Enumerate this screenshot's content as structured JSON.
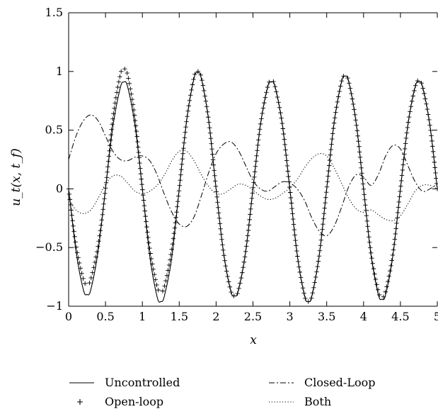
{
  "chart_data": {
    "type": "line",
    "title": "",
    "xlabel": "x",
    "ylabel": "u_t(x, t_f)",
    "xlim": [
      0,
      5
    ],
    "ylim": [
      -1,
      1.5
    ],
    "xticks": [
      0,
      0.5,
      1,
      1.5,
      2,
      2.5,
      3,
      3.5,
      4,
      4.5,
      5
    ],
    "xtick_labels": [
      "0",
      "0.5",
      "1",
      "1.5",
      "2",
      "2.5",
      "3",
      "3.5",
      "4",
      "4.5",
      "5"
    ],
    "yticks": [
      -1,
      -0.5,
      0,
      0.5,
      1,
      1.5
    ],
    "ytick_labels": [
      "−1",
      "−0.5",
      "0",
      "0.5",
      "1",
      "1.5"
    ],
    "grid": false,
    "legend_position": "bottom",
    "series": [
      {
        "name": "Uncontrolled",
        "style": "solid",
        "x": [
          0,
          0.1,
          0.2,
          0.25,
          0.3,
          0.4,
          0.5,
          0.6,
          0.7,
          0.75,
          0.8,
          0.9,
          1.0,
          1.1,
          1.2,
          1.25,
          1.3,
          1.4,
          1.5,
          1.6,
          1.7,
          1.75,
          1.8,
          1.9,
          2.0,
          2.1,
          2.2,
          2.25,
          2.3,
          2.4,
          2.5,
          2.6,
          2.7,
          2.75,
          2.8,
          2.9,
          3.0,
          3.1,
          3.2,
          3.25,
          3.3,
          3.4,
          3.5,
          3.6,
          3.7,
          3.75,
          3.8,
          3.9,
          4.0,
          4.1,
          4.2,
          4.25,
          4.3,
          4.4,
          4.5,
          4.6,
          4.7,
          4.75,
          4.8,
          4.9,
          5.0
        ],
        "y": [
          0.0,
          -0.53,
          -0.86,
          -0.9,
          -0.86,
          -0.53,
          0.0,
          0.53,
          0.86,
          0.91,
          0.87,
          0.54,
          0.0,
          -0.57,
          -0.92,
          -0.96,
          -0.91,
          -0.58,
          0.0,
          0.58,
          0.94,
          0.99,
          0.94,
          0.58,
          0.0,
          -0.54,
          -0.87,
          -0.91,
          -0.87,
          -0.54,
          0.0,
          0.54,
          0.87,
          0.91,
          0.87,
          0.54,
          0.0,
          -0.56,
          -0.91,
          -0.96,
          -0.91,
          -0.56,
          0.0,
          0.56,
          0.91,
          0.96,
          0.91,
          0.56,
          0.0,
          -0.56,
          -0.9,
          -0.94,
          -0.9,
          -0.56,
          0.0,
          0.54,
          0.87,
          0.91,
          0.87,
          0.54,
          0.0
        ]
      },
      {
        "name": "Open-loop",
        "style": "plus",
        "x": [
          0,
          0.1,
          0.2,
          0.25,
          0.3,
          0.4,
          0.5,
          0.6,
          0.7,
          0.75,
          0.8,
          0.9,
          1.0,
          1.1,
          1.2,
          1.25,
          1.3,
          1.4,
          1.5,
          1.6,
          1.7,
          1.75,
          1.8,
          1.9,
          2.0,
          2.1,
          2.2,
          2.25,
          2.3,
          2.4,
          2.5,
          2.6,
          2.7,
          2.75,
          2.8,
          2.9,
          3.0,
          3.1,
          3.2,
          3.25,
          3.3,
          3.4,
          3.5,
          3.6,
          3.7,
          3.75,
          3.8,
          3.9,
          4.0,
          4.1,
          4.2,
          4.25,
          4.3,
          4.4,
          4.5,
          4.6,
          4.7,
          4.75,
          4.8,
          4.9,
          5.0
        ],
        "y": [
          0.0,
          -0.48,
          -0.77,
          -0.81,
          -0.77,
          -0.48,
          0.0,
          0.6,
          0.97,
          1.02,
          0.97,
          0.6,
          0.0,
          -0.51,
          -0.83,
          -0.87,
          -0.83,
          -0.51,
          0.0,
          0.58,
          0.95,
          1.0,
          0.95,
          0.58,
          0.0,
          -0.54,
          -0.87,
          -0.91,
          -0.87,
          -0.54,
          0.0,
          0.54,
          0.87,
          0.92,
          0.87,
          0.54,
          0.0,
          -0.56,
          -0.91,
          -0.96,
          -0.91,
          -0.56,
          0.0,
          0.56,
          0.91,
          0.96,
          0.91,
          0.56,
          0.0,
          -0.54,
          -0.87,
          -0.92,
          -0.87,
          -0.54,
          0.0,
          0.54,
          0.87,
          0.92,
          0.87,
          0.54,
          0.0
        ]
      },
      {
        "name": "Closed-Loop",
        "style": "dashdot",
        "x": [
          0,
          0.1,
          0.2,
          0.3,
          0.4,
          0.5,
          0.6,
          0.7,
          0.8,
          0.9,
          1.0,
          1.1,
          1.2,
          1.3,
          1.4,
          1.5,
          1.6,
          1.7,
          1.8,
          1.9,
          2.0,
          2.1,
          2.2,
          2.3,
          2.4,
          2.5,
          2.6,
          2.7,
          2.8,
          2.9,
          3.0,
          3.1,
          3.2,
          3.3,
          3.4,
          3.5,
          3.6,
          3.7,
          3.8,
          3.9,
          4.0,
          4.1,
          4.2,
          4.3,
          4.4,
          4.5,
          4.6,
          4.7,
          4.8,
          4.9,
          5.0
        ],
        "y": [
          0.25,
          0.45,
          0.58,
          0.63,
          0.58,
          0.45,
          0.32,
          0.25,
          0.24,
          0.27,
          0.28,
          0.24,
          0.12,
          -0.05,
          -0.2,
          -0.3,
          -0.32,
          -0.24,
          -0.06,
          0.14,
          0.3,
          0.38,
          0.4,
          0.33,
          0.2,
          0.07,
          0.0,
          -0.02,
          0.02,
          0.06,
          0.05,
          0.0,
          -0.1,
          -0.25,
          -0.36,
          -0.4,
          -0.32,
          -0.16,
          0.02,
          0.12,
          0.1,
          0.03,
          0.12,
          0.28,
          0.37,
          0.34,
          0.2,
          0.06,
          -0.02,
          0.0,
          0.04
        ]
      },
      {
        "name": "Both",
        "style": "dotted",
        "x": [
          0,
          0.1,
          0.2,
          0.3,
          0.4,
          0.5,
          0.6,
          0.7,
          0.8,
          0.9,
          1.0,
          1.1,
          1.2,
          1.3,
          1.4,
          1.5,
          1.6,
          1.7,
          1.8,
          1.9,
          2.0,
          2.1,
          2.2,
          2.3,
          2.4,
          2.5,
          2.6,
          2.7,
          2.8,
          2.9,
          3.0,
          3.1,
          3.2,
          3.3,
          3.4,
          3.5,
          3.6,
          3.7,
          3.8,
          3.9,
          4.0,
          4.1,
          4.2,
          4.3,
          4.4,
          4.5,
          4.6,
          4.7,
          4.8,
          4.9,
          5.0
        ],
        "y": [
          -0.08,
          -0.18,
          -0.21,
          -0.18,
          -0.08,
          0.04,
          0.11,
          0.11,
          0.05,
          -0.02,
          -0.04,
          -0.02,
          0.03,
          0.12,
          0.24,
          0.32,
          0.32,
          0.24,
          0.12,
          0.02,
          -0.04,
          -0.04,
          0.0,
          0.04,
          0.03,
          -0.01,
          -0.06,
          -0.09,
          -0.08,
          -0.04,
          0.01,
          0.08,
          0.18,
          0.26,
          0.3,
          0.28,
          0.18,
          0.05,
          -0.08,
          -0.17,
          -0.2,
          -0.18,
          -0.22,
          -0.26,
          -0.27,
          -0.23,
          -0.13,
          -0.02,
          0.03,
          0.03,
          0.0
        ]
      }
    ]
  }
}
